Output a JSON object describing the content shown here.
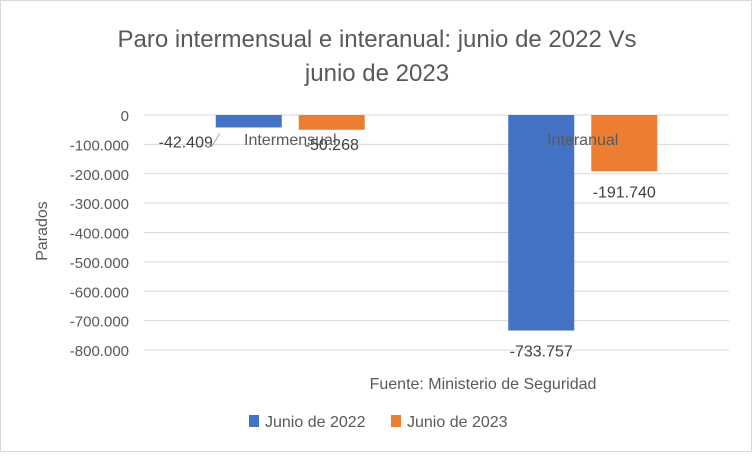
{
  "chart_data": {
    "type": "bar",
    "title": "Paro intermensual e interanual: junio de 2022 Vs junio de 2023",
    "title_lines": [
      "Paro intermensual e interanual: junio de 2022 Vs",
      "junio de 2023"
    ],
    "ylabel": "Parados",
    "xlabel": "",
    "source_note": "Fuente: Ministerio de Seguridad",
    "categories": [
      "Intermensual",
      "Interanual"
    ],
    "series": [
      {
        "name": "Junio de 2022",
        "color": "#4472c4",
        "values": [
          -42409,
          -733757
        ],
        "labels": [
          "-42.409",
          "-733.757"
        ]
      },
      {
        "name": "Junio de 2023",
        "color": "#ed7d31",
        "values": [
          -50268,
          -191740
        ],
        "labels": [
          "-50.268",
          "-191.740"
        ]
      }
    ],
    "ylim": [
      -800000,
      0
    ],
    "yticks": [
      0,
      -100000,
      -200000,
      -300000,
      -400000,
      -500000,
      -600000,
      -700000,
      -800000
    ],
    "ytick_labels": [
      "0",
      "-100.000",
      "-200.000",
      "-300.000",
      "-400.000",
      "-500.000",
      "-600.000",
      "-700.000",
      "-800.000"
    ],
    "grid": true,
    "legend_position": "bottom"
  }
}
